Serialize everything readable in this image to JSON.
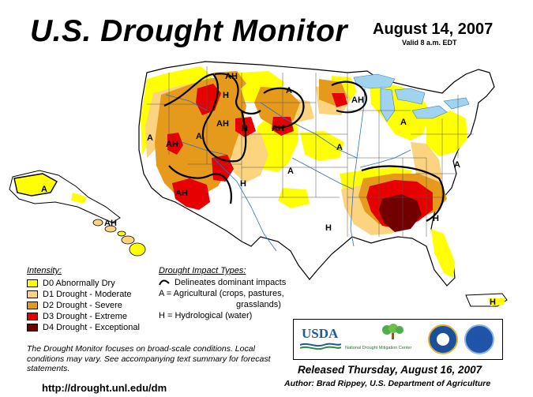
{
  "title": "U.S. Drought Monitor",
  "date": "August 14, 2007",
  "valid": "Valid 8 a.m. EDT",
  "colors": {
    "D0": "#ffff00",
    "D1": "#fcd37f",
    "D2": "#e59a1c",
    "D3": "#e60000",
    "D4": "#730000"
  },
  "legend": {
    "header": "Intensity:",
    "items": [
      {
        "label": "D0 Abnormally Dry",
        "color": "#ffff00"
      },
      {
        "label": "D1 Drought - Moderate",
        "color": "#fcd37f"
      },
      {
        "label": "D2 Drought - Severe",
        "color": "#e59a1c"
      },
      {
        "label": "D3 Drought - Extreme",
        "color": "#e60000"
      },
      {
        "label": "D4 Drought - Exceptional",
        "color": "#730000"
      }
    ]
  },
  "impacts": {
    "header": "Drought Impact Types:",
    "delineates": "Delineates dominant impacts",
    "agri_1": "A = Agricultural (crops, pastures,",
    "agri_2": "grasslands)",
    "hydro": "H = Hydrological (water)"
  },
  "note": "The Drought Monitor focuses on broad-scale conditions. Local conditions may vary. See accompanying text summary for forecast statements.",
  "url": "http://drought.unl.edu/dm",
  "logos": {
    "usda": "USDA",
    "ndmc": "National Drought Mitigation Center",
    "noaa": "NOAA"
  },
  "released": "Released Thursday, August 16, 2007",
  "author": "Author: Brad Rippey, U.S. Department of Agriculture",
  "map_labels": {
    "ah": "AH",
    "a": "A",
    "h": "H"
  }
}
